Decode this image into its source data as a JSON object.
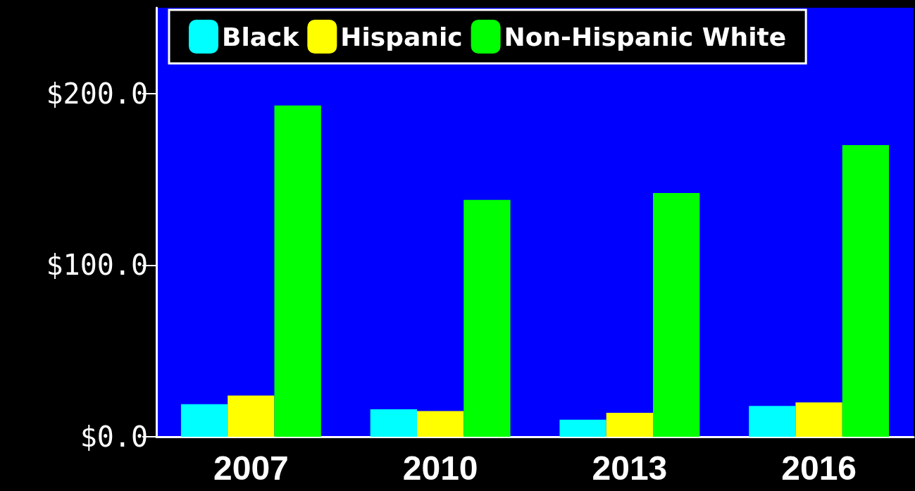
{
  "chart_data": {
    "type": "bar",
    "categories": [
      "2007",
      "2010",
      "2013",
      "2016"
    ],
    "series": [
      {
        "name": "Black",
        "color": "#00ffff",
        "values": [
          19,
          16,
          10,
          18
        ]
      },
      {
        "name": "Hispanic",
        "color": "#ffff00",
        "values": [
          24,
          15,
          14,
          20
        ]
      },
      {
        "name": "Non-Hispanic White",
        "color": "#00ff00",
        "values": [
          193,
          138,
          142,
          170
        ]
      }
    ],
    "ylim": [
      0,
      250
    ],
    "yticks": [
      {
        "value": 0,
        "label": "$0.0"
      },
      {
        "value": 100,
        "label": "$100.0"
      },
      {
        "value": 200,
        "label": "$200.0"
      }
    ],
    "grid": false,
    "legend": "top"
  }
}
